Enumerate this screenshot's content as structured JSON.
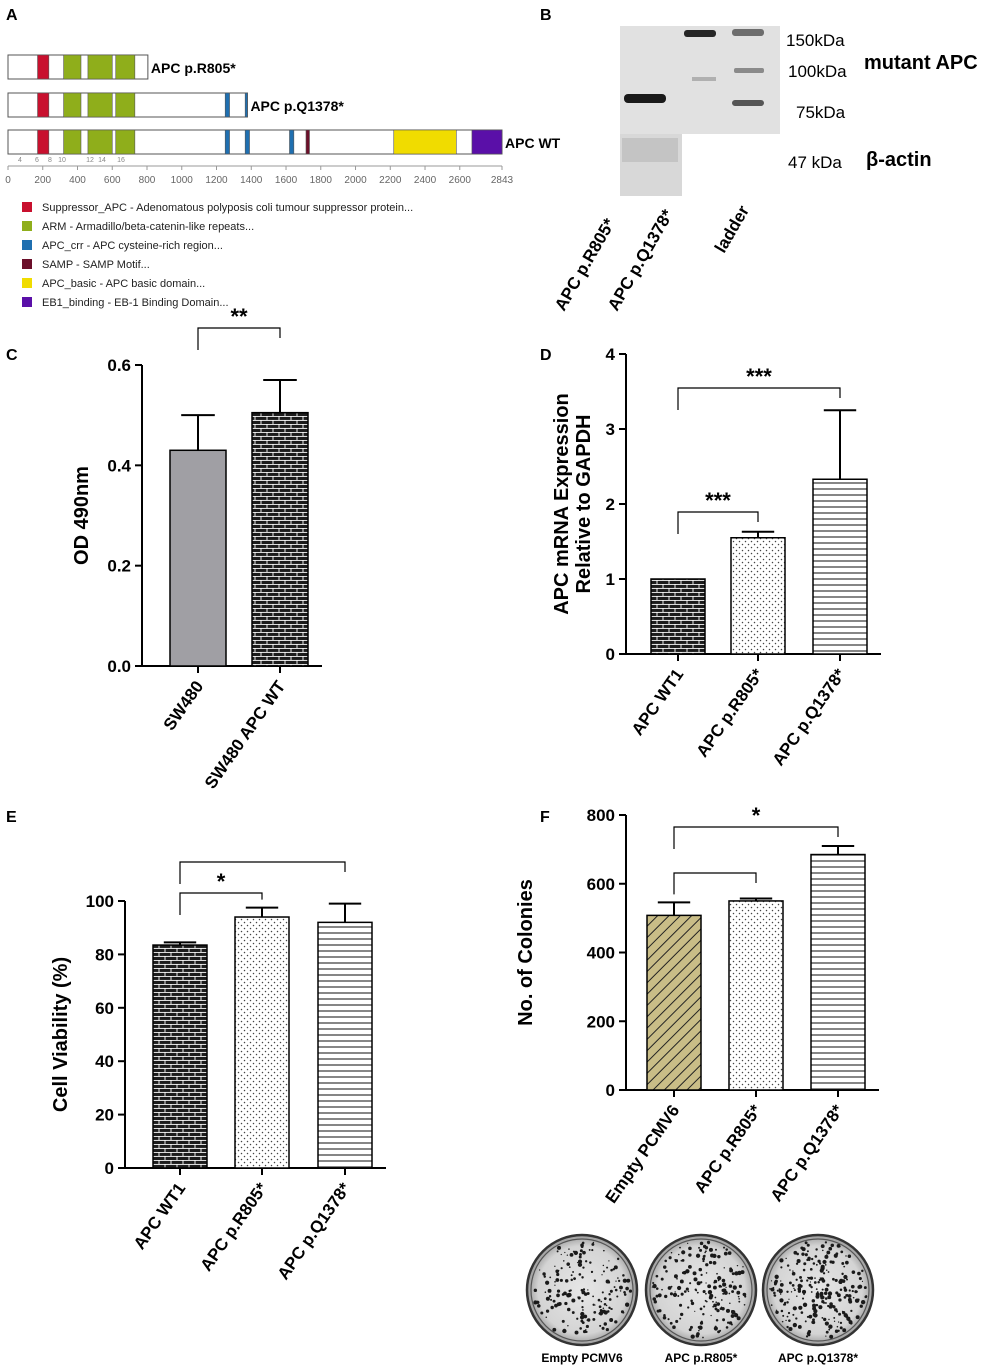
{
  "panels": {
    "a": "A",
    "b": "B",
    "c": "C",
    "d": "D",
    "e": "E",
    "f": "F"
  },
  "colors": {
    "suppressor": "#c8102e",
    "arm": "#8fae1b",
    "crr": "#1f6fb0",
    "samp": "#6b0f2a",
    "basic": "#f0dc00",
    "eb1": "#5a0fa8",
    "gray_bar": "#a09fa4",
    "hatch_fill": "#c9bd87"
  },
  "domain_map": {
    "constructs": [
      {
        "label": "APC p.R805*",
        "end": 805
      },
      {
        "label": "APC p.Q1378*",
        "end": 1378
      },
      {
        "label": "APC WT",
        "end": 2843
      }
    ],
    "axis_ticks": [
      "0",
      "200",
      "400",
      "600",
      "800",
      "1000",
      "1200",
      "1400",
      "1600",
      "1800",
      "2000",
      "2200",
      "2400",
      "2600",
      "2843"
    ],
    "exon_ticks": [
      "4",
      "6",
      "8",
      "10",
      "12",
      "14",
      "16"
    ],
    "legend": [
      {
        "color": "#c8102e",
        "text": "Suppressor_APC - Adenomatous polyposis coli tumour suppressor protein..."
      },
      {
        "color": "#8fae1b",
        "text": "ARM - Armadillo/beta-catenin-like repeats..."
      },
      {
        "color": "#1f6fb0",
        "text": "APC_crr - APC cysteine-rich region..."
      },
      {
        "color": "#6b0f2a",
        "text": "SAMP - SAMP Motif..."
      },
      {
        "color": "#f0dc00",
        "text": "APC_basic - APC basic domain..."
      },
      {
        "color": "#5a0fa8",
        "text": "EB1_binding - EB-1 Binding Domain..."
      }
    ]
  },
  "western_blot": {
    "ladder_labels": [
      "150kDa",
      "100kDa",
      "75kDa"
    ],
    "actin_kda": "47 kDa",
    "mutant_label": "mutant APC",
    "actin_label": "β-actin",
    "lanes": [
      "APC p.R805*",
      "APC p.Q1378*",
      "ladder"
    ]
  },
  "chart_data": [
    {
      "panel": "C",
      "type": "bar",
      "categories": [
        "SW480",
        "SW480 APC WT"
      ],
      "values": [
        0.43,
        0.505
      ],
      "errors": [
        0.07,
        0.065
      ],
      "ylabel": "OD 490nm",
      "ylim": [
        0,
        0.6
      ],
      "yticks": [
        "0.0",
        "0.2",
        "0.4",
        "0.6"
      ],
      "significance": [
        {
          "pair": [
            0,
            1
          ],
          "label": "**"
        }
      ]
    },
    {
      "panel": "D",
      "type": "bar",
      "categories": [
        "APC WT1",
        "APC p.R805*",
        "APC p.Q1378*"
      ],
      "values": [
        1.0,
        1.55,
        2.33
      ],
      "errors": [
        0,
        0.08,
        0.92
      ],
      "ylabel": "APC mRNA Expression Relative to GAPDH",
      "ylabel_lines": [
        "APC mRNA Expression",
        "Relative to GAPDH"
      ],
      "ylim": [
        0,
        4
      ],
      "yticks": [
        "0",
        "1",
        "2",
        "3",
        "4"
      ],
      "significance": [
        {
          "pair": [
            0,
            1
          ],
          "label": "***"
        },
        {
          "pair": [
            0,
            2
          ],
          "label": "***"
        }
      ]
    },
    {
      "panel": "E",
      "type": "bar",
      "categories": [
        "APC WT1",
        "APC p.R805*",
        "APC p.Q1378*"
      ],
      "values": [
        83.5,
        94,
        92
      ],
      "errors": [
        1,
        3.5,
        7
      ],
      "ylabel": "Cell Viability (%)",
      "ylim": [
        0,
        100
      ],
      "yticks": [
        "0",
        "20",
        "40",
        "60",
        "80",
        "100"
      ],
      "significance": [
        {
          "pair": [
            0,
            1
          ],
          "label": "*"
        },
        {
          "pair": [
            0,
            2
          ],
          "label": ""
        }
      ]
    },
    {
      "panel": "F",
      "type": "bar",
      "categories": [
        "Empty PCMV6",
        "APC p.R805*",
        "APC p.Q1378*"
      ],
      "values": [
        508,
        550,
        685
      ],
      "errors": [
        38,
        7,
        25
      ],
      "ylabel": "No. of Colonies",
      "ylim": [
        0,
        800
      ],
      "yticks": [
        "0",
        "200",
        "400",
        "600",
        "800"
      ],
      "significance": [
        {
          "pair": [
            0,
            1
          ],
          "label": ""
        },
        {
          "pair": [
            0,
            2
          ],
          "label": "*"
        }
      ]
    }
  ],
  "colony_images": [
    "Empty PCMV6",
    "APC p.R805*",
    "APC p.Q1378*"
  ]
}
